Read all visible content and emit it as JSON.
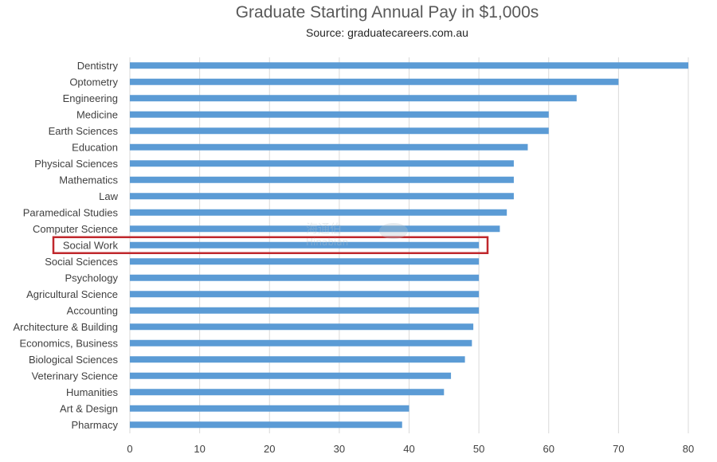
{
  "chart_data": {
    "type": "bar",
    "orientation": "horizontal",
    "title": "Graduate Starting Annual Pay in $1,000s",
    "subtitle": "Source: graduatecareers.com.au",
    "categories": [
      "Dentistry",
      "Optometry",
      "Engineering",
      "Medicine",
      "Earth Sciences",
      "Education",
      "Physical Sciences",
      "Mathematics",
      "Law",
      "Paramedical Studies",
      "Computer Science",
      "Social Work",
      "Social Sciences",
      "Psychology",
      "Agricultural Science",
      "Accounting",
      "Architecture & Building",
      "Economics, Business",
      "Biological Sciences",
      "Veterinary Science",
      "Humanities",
      "Art & Design",
      "Pharmacy"
    ],
    "values": [
      80,
      70,
      64,
      60,
      60,
      57,
      55,
      55,
      55,
      54,
      53,
      50,
      50,
      50,
      50,
      50,
      49.2,
      49,
      48,
      46,
      45,
      40,
      39
    ],
    "xlim": [
      0,
      80
    ],
    "xticks": [
      0,
      10,
      20,
      30,
      40,
      50,
      60,
      70,
      80
    ],
    "grid": true,
    "highlighted_category": "Social Work",
    "colors": {
      "bar": "#5b9bd5",
      "highlight_box": "#c0282d",
      "grid": "#d9d9d9"
    }
  },
  "watermark": {
    "text_top": "海通伯",
    "text_bottom": "Hinabian"
  }
}
